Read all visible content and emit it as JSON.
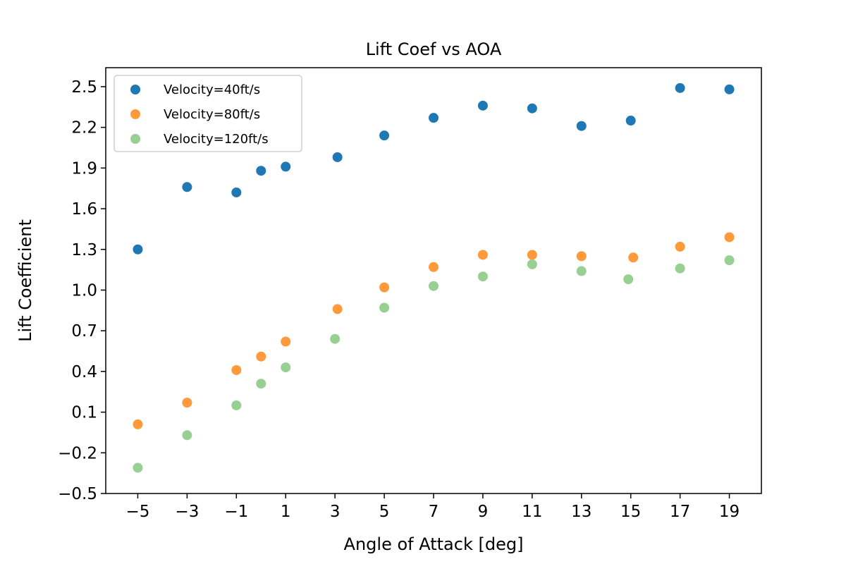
{
  "chart_data": {
    "type": "scatter",
    "title": "Lift Coef vs AOA",
    "xlabel": "Angle of Attack [deg]",
    "ylabel": "Lift Coefficient",
    "xlim": [
      -6.3,
      20.3
    ],
    "ylim": [
      -0.5,
      2.64
    ],
    "xticks": [
      -5,
      -3,
      -1,
      1,
      3,
      5,
      7,
      9,
      11,
      13,
      15,
      17,
      19
    ],
    "xtick_labels": [
      "−5",
      "−3",
      "−1",
      "1",
      "3",
      "5",
      "7",
      "9",
      "11",
      "13",
      "15",
      "17",
      "19"
    ],
    "yticks": [
      -0.5,
      -0.2,
      0.1,
      0.4,
      0.7,
      1.0,
      1.3,
      1.6,
      1.9,
      2.2,
      2.5
    ],
    "ytick_labels": [
      "−0.5",
      "−0.2",
      "0.1",
      "0.4",
      "0.7",
      "1.0",
      "1.3",
      "1.6",
      "1.9",
      "2.2",
      "2.5"
    ],
    "grid": false,
    "legend_position": "top-left",
    "series": [
      {
        "name": "Velocity=40ft/s",
        "color": "#1f77b4",
        "points": [
          [
            -5,
            1.3
          ],
          [
            -3,
            1.76
          ],
          [
            -1,
            1.72
          ],
          [
            0,
            1.88
          ],
          [
            1,
            1.91
          ],
          [
            3.1,
            1.98
          ],
          [
            5,
            2.14
          ],
          [
            7,
            2.27
          ],
          [
            9,
            2.36
          ],
          [
            11,
            2.34
          ],
          [
            13,
            2.21
          ],
          [
            15,
            2.25
          ],
          [
            17,
            2.49
          ],
          [
            19,
            2.48
          ]
        ]
      },
      {
        "name": "Velocity=80ft/s",
        "color": "#ff9a3c",
        "points": [
          [
            -5,
            0.01
          ],
          [
            -3,
            0.17
          ],
          [
            -1,
            0.41
          ],
          [
            0,
            0.51
          ],
          [
            1,
            0.62
          ],
          [
            3.1,
            0.86
          ],
          [
            5,
            1.02
          ],
          [
            7,
            1.17
          ],
          [
            9,
            1.26
          ],
          [
            11,
            1.26
          ],
          [
            13,
            1.25
          ],
          [
            15.1,
            1.24
          ],
          [
            17,
            1.32
          ],
          [
            19,
            1.39
          ]
        ]
      },
      {
        "name": "Velocity=120ft/s",
        "color": "#98d094",
        "points": [
          [
            -5,
            -0.31
          ],
          [
            -3,
            -0.07
          ],
          [
            -1,
            0.15
          ],
          [
            0,
            0.31
          ],
          [
            1,
            0.43
          ],
          [
            3,
            0.64
          ],
          [
            5,
            0.87
          ],
          [
            7,
            1.03
          ],
          [
            9,
            1.1
          ],
          [
            11,
            1.19
          ],
          [
            13,
            1.14
          ],
          [
            14.9,
            1.08
          ],
          [
            17,
            1.16
          ],
          [
            19,
            1.22
          ]
        ]
      }
    ]
  }
}
